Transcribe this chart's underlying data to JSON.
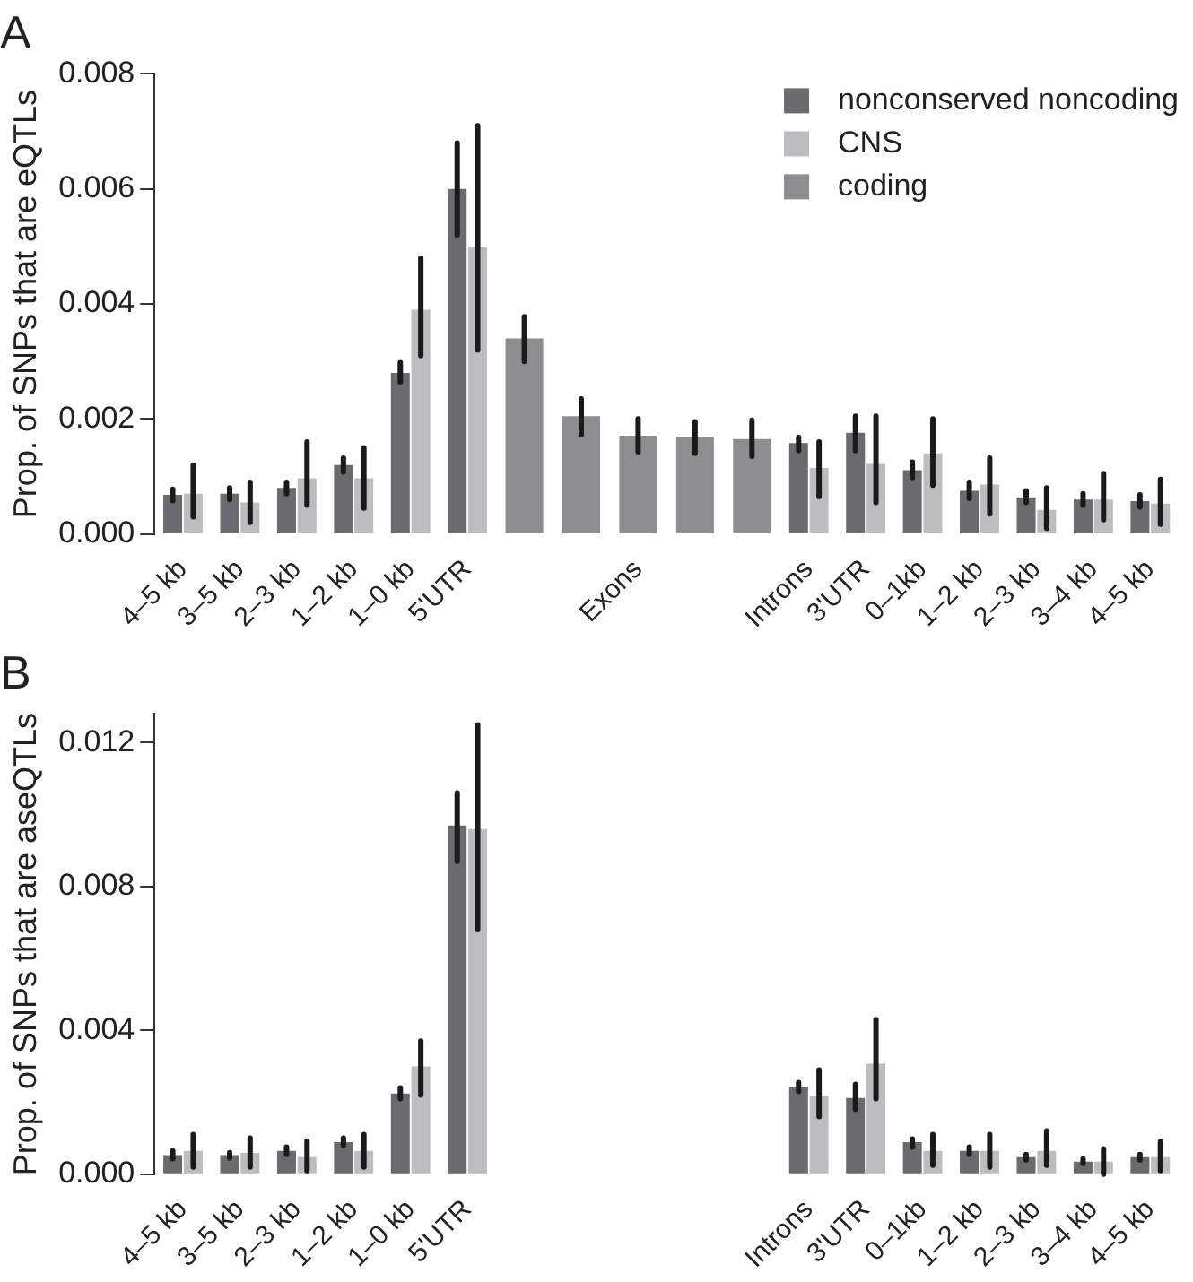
{
  "chart_data": [
    {
      "type": "bar",
      "title": "A",
      "ylabel": "Prop. of SNPs that are eQTLs",
      "categories": [
        "4–5 kb",
        "3–5 kb",
        "2–3 kb",
        "1–2 kb",
        "1–0 kb",
        "5'UTR",
        null,
        null,
        "Exons",
        null,
        null,
        "Introns",
        "3'UTR",
        "0–1kb",
        "1–2 kb",
        "2–3 kb",
        "3–4 kb",
        "4–5 kb"
      ],
      "series": [
        {
          "name": "nonconserved noncoding",
          "color": "#6b6b6f",
          "values": [
            0.00068,
            0.0007,
            0.0008,
            0.0012,
            0.0028,
            0.006,
            null,
            null,
            null,
            null,
            null,
            0.00158,
            0.00176,
            0.00111,
            0.00075,
            0.00064,
            0.0006,
            0.00057
          ],
          "errors": [
            [
              0.00058,
              0.00078
            ],
            [
              0.0006,
              0.0008
            ],
            [
              0.0007,
              0.0009
            ],
            [
              0.00108,
              0.00132
            ],
            [
              0.00264,
              0.00298
            ],
            [
              0.0052,
              0.0068
            ],
            null,
            null,
            null,
            null,
            null,
            [
              0.00145,
              0.00168
            ],
            [
              0.00145,
              0.00205
            ],
            [
              0.00098,
              0.00125
            ],
            [
              0.00062,
              0.0009
            ],
            [
              0.00055,
              0.00075
            ],
            [
              0.0005,
              0.0007
            ],
            [
              0.00047,
              0.00068
            ]
          ]
        },
        {
          "name": "CNS",
          "color": "#bdbdc0",
          "values": [
            0.0007,
            0.00055,
            0.00097,
            0.00097,
            0.0039,
            0.005,
            null,
            null,
            null,
            null,
            null,
            0.00115,
            0.00122,
            0.0014,
            0.00086,
            0.00042,
            0.0006,
            0.00053
          ],
          "errors": [
            [
              0.0003,
              0.0012
            ],
            [
              0.0002,
              0.0009
            ],
            [
              0.0005,
              0.0016
            ],
            [
              0.00045,
              0.0015
            ],
            [
              0.0031,
              0.0048
            ],
            [
              0.0032,
              0.0071
            ],
            null,
            null,
            null,
            null,
            null,
            [
              0.00065,
              0.0016
            ],
            [
              0.00055,
              0.00205
            ],
            [
              0.00085,
              0.002
            ],
            [
              0.00035,
              0.00132
            ],
            [
              0.0001,
              0.0008
            ],
            [
              0.00025,
              0.00105
            ],
            [
              0.00017,
              0.00095
            ]
          ]
        },
        {
          "name": "coding",
          "color": "#8e8e90",
          "values": [
            null,
            null,
            null,
            null,
            null,
            null,
            0.0034,
            0.00205,
            0.00171,
            0.00169,
            0.00165,
            null,
            null,
            null,
            null,
            null,
            null,
            null
          ],
          "errors": [
            null,
            null,
            null,
            null,
            null,
            null,
            [
              0.003,
              0.00378
            ],
            [
              0.00173,
              0.00235
            ],
            [
              0.00143,
              0.002
            ],
            [
              0.0014,
              0.00195
            ],
            [
              0.00135,
              0.00198
            ],
            null,
            null,
            null,
            null,
            null,
            null,
            null
          ]
        }
      ],
      "ylim": [
        0,
        0.008
      ],
      "yticks": [
        {
          "value": 0,
          "label": "0.000"
        },
        {
          "value": 0.002,
          "label": "0.002"
        },
        {
          "value": 0.004,
          "label": "0.004"
        },
        {
          "value": 0.006,
          "label": "0.006"
        },
        {
          "value": 0.008,
          "label": "0.008"
        }
      ],
      "legend": "top right",
      "grid": false
    },
    {
      "type": "bar",
      "title": "B",
      "ylabel": "Prop. of SNPs that are aseQTLs",
      "categories": [
        "4–5 kb",
        "3–5 kb",
        "2–3 kb",
        "1–2 kb",
        "1–0 kb",
        "5'UTR",
        null,
        null,
        null,
        null,
        null,
        "Introns",
        "3'UTR",
        "0–1kb",
        "1–2 kb",
        "2–3 kb",
        "3–4 kb",
        "4–5 kb"
      ],
      "series": [
        {
          "color": "#6b6b6f",
          "values": [
            0.00053,
            0.00053,
            0.00065,
            0.00089,
            0.00224,
            0.0097,
            null,
            null,
            null,
            null,
            null,
            0.00242,
            0.00212,
            0.00089,
            0.00065,
            0.00047,
            0.00035,
            0.00047
          ],
          "errors": [
            [
              0.00043,
              0.00065
            ],
            [
              0.00045,
              0.0006
            ],
            [
              0.00055,
              0.00075
            ],
            [
              0.0008,
              0.001
            ],
            [
              0.0021,
              0.0024
            ],
            [
              0.0087,
              0.0106
            ],
            null,
            null,
            null,
            null,
            null,
            [
              0.0023,
              0.00255
            ],
            [
              0.0018,
              0.0025
            ],
            [
              0.00075,
              0.00098
            ],
            [
              0.00055,
              0.00075
            ],
            [
              0.0004,
              0.00055
            ],
            [
              0.0003,
              0.00042
            ],
            [
              0.0004,
              0.00055
            ]
          ]
        },
        {
          "color": "#bdbdc0",
          "values": [
            0.00065,
            0.00059,
            0.00047,
            0.00065,
            0.003,
            0.0096,
            null,
            null,
            null,
            null,
            null,
            0.00218,
            0.00307,
            0.00065,
            0.00065,
            0.00065,
            0.00035,
            0.00047
          ],
          "errors": [
            [
              0.0002,
              0.0011
            ],
            [
              0.0002,
              0.001
            ],
            [
              0.0001,
              0.00092
            ],
            [
              0.0002,
              0.0011
            ],
            [
              0.0022,
              0.0037
            ],
            [
              0.0068,
              0.0125
            ],
            null,
            null,
            null,
            null,
            null,
            [
              0.0016,
              0.0029
            ],
            [
              0.0021,
              0.0043
            ],
            [
              0.00025,
              0.0011
            ],
            [
              0.0002,
              0.0011
            ],
            [
              0.00025,
              0.0012
            ],
            [
              0,
              0.0007
            ],
            [
              0.0001,
              0.0009
            ]
          ]
        },
        {
          "color": "#8e8e90",
          "values": [
            null,
            null,
            null,
            null,
            null,
            null,
            0,
            0,
            0,
            0,
            0,
            null,
            null,
            null,
            null,
            null,
            null,
            null
          ]
        }
      ],
      "ylim": [
        0,
        0.0128
      ],
      "yticks": [
        {
          "value": 0,
          "label": "0.000"
        },
        {
          "value": 0.004,
          "label": "0.004"
        },
        {
          "value": 0.008,
          "label": "0.008"
        },
        {
          "value": 0.012,
          "label": "0.012"
        }
      ],
      "legend": false,
      "grid": false
    }
  ]
}
